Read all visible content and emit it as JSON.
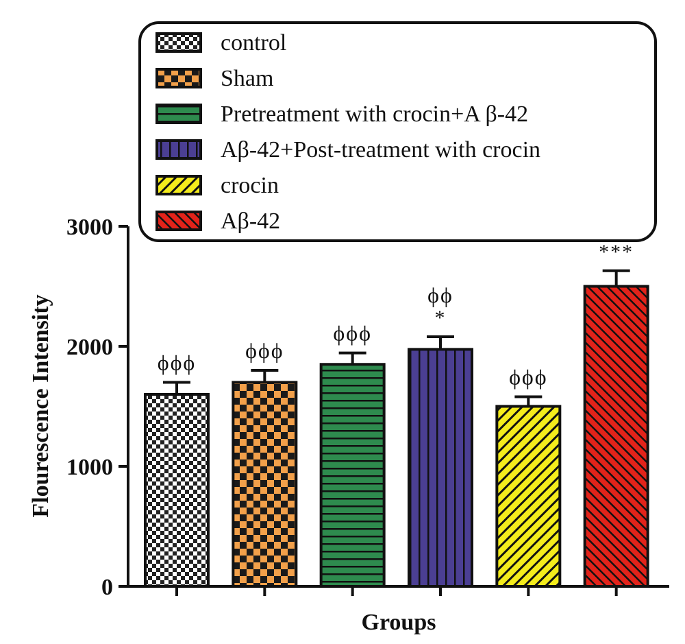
{
  "chart_data": {
    "type": "bar",
    "xlabel": "Groups",
    "ylabel": "Flourescence Intensity",
    "ylim": [
      0,
      3000
    ],
    "yticks": [
      "0",
      "1000",
      "2000",
      "3000"
    ],
    "grid": false,
    "legend_position": "top",
    "categories": [
      "control",
      "Sham",
      "Pretreatment with crocin+A β-42",
      "Aβ-42+Post-treatment with crocin",
      "crocin",
      "Aβ-42"
    ],
    "values": [
      1600,
      1700,
      1850,
      1975,
      1500,
      2500
    ],
    "errors": [
      100,
      100,
      95,
      105,
      80,
      130
    ],
    "annotations": [
      [
        "ϕϕϕ"
      ],
      [
        "ϕϕϕ"
      ],
      [
        "ϕϕϕ"
      ],
      [
        "ϕϕ",
        "*"
      ],
      [
        "ϕϕϕ"
      ],
      [
        "***"
      ]
    ],
    "colors": [
      "#ffffff",
      "#f2a04a",
      "#2e8b4e",
      "#4b3f93",
      "#f4ec1c",
      "#e2231a"
    ],
    "patterns": [
      "checker-small",
      "checker-large",
      "horizontal",
      "vertical",
      "diagonal",
      "diagonal-dense"
    ]
  }
}
